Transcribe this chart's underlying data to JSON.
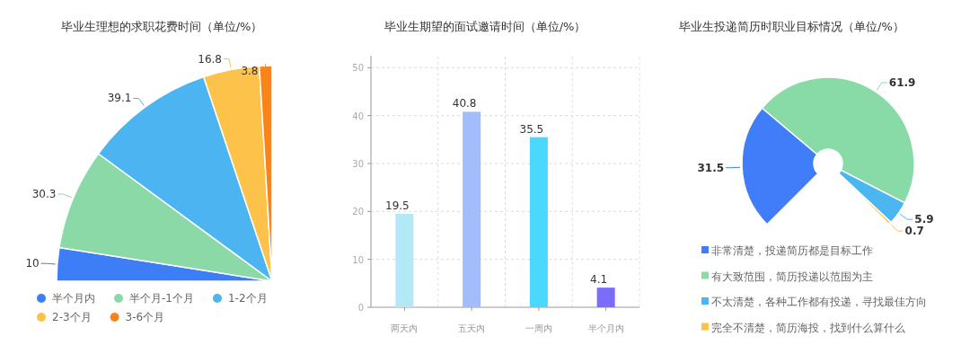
{
  "chart_data": [
    {
      "type": "pie",
      "title": "毕业生理想的求职花费时间（单位/%）",
      "categories": [
        "半个月内",
        "半个月-1个月",
        "1-2个月",
        "2-3个月",
        "3-6个月"
      ],
      "values": [
        10,
        30.3,
        39.1,
        16.8,
        3.8
      ],
      "colors": [
        "#3d7ef7",
        "#8ad9a6",
        "#4cb4f0",
        "#fdc24a",
        "#fb8418"
      ],
      "data_labels": true,
      "legend": "bottom"
    },
    {
      "type": "bar",
      "title": "毕业生期望的面试邀请时间（单位/%）",
      "categories": [
        "两天内",
        "五天内",
        "一周内",
        "半个月内"
      ],
      "values": [
        19.5,
        40.8,
        35.5,
        4.1
      ],
      "colors": [
        "#b3e8f7",
        "#a3bcfc",
        "#4ad9fc",
        "#7b6cfa"
      ],
      "ylim": [
        0,
        52.5
      ],
      "yticks": [
        0,
        10,
        20,
        30,
        40,
        50
      ],
      "grid": true,
      "data_labels": true
    },
    {
      "type": "donut",
      "title": "毕业生投递简历时职业目标情况（单位/%）",
      "categories": [
        "非常清楚，投递简历都是目标工作",
        "有大致范围，简历投递以范围为主",
        "不太清楚，各种工作都有投递，寻找最佳方向",
        "完全不清楚，简历海投，找到什么算什么"
      ],
      "values": [
        31.5,
        61.9,
        5.9,
        0.7
      ],
      "colors": [
        "#3f7ef8",
        "#88dba7",
        "#4cb6f0",
        "#fbc14b"
      ],
      "data_labels": true,
      "legend": "bottom"
    }
  ]
}
